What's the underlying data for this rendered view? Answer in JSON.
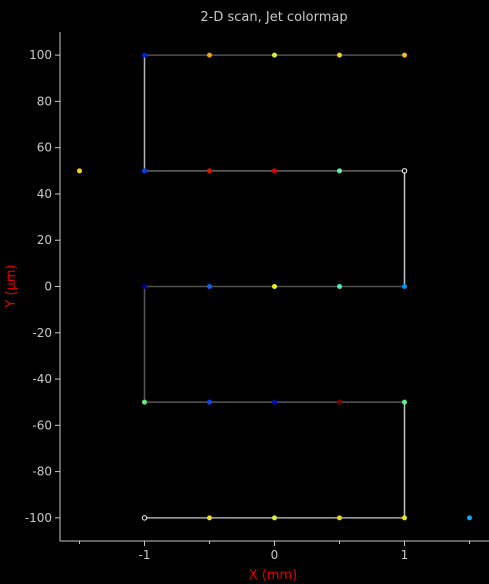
{
  "chart_data": {
    "type": "scatter",
    "title": "2-D scan, Jet colormap",
    "xlabel": "X (mm)",
    "ylabel": "Y (µm)",
    "xlim": [
      -1.65,
      1.65
    ],
    "ylim": [
      -110,
      110
    ],
    "x_ticks": [
      -1,
      0,
      1
    ],
    "x_tick_labels": [
      "-1",
      "0",
      "1"
    ],
    "y_ticks": [
      -100,
      -80,
      -60,
      -40,
      -20,
      0,
      20,
      40,
      60,
      80,
      100
    ],
    "y_tick_labels": [
      "-100",
      "-80",
      "-60",
      "-40",
      "-20",
      "0",
      "20",
      "40",
      "60",
      "80",
      "100"
    ],
    "grid": false,
    "background": "#000000",
    "path_colors": [
      "#3a3a3a",
      "#cccccc"
    ],
    "path_segments": [
      {
        "from": [
          -1,
          -100
        ],
        "to": [
          1,
          -100
        ],
        "shade": 0.75
      },
      {
        "from": [
          1,
          -100
        ],
        "to": [
          1,
          -50
        ],
        "shade": 0.95
      },
      {
        "from": [
          1,
          -50
        ],
        "to": [
          -1,
          -50
        ],
        "shade": 0.2
      },
      {
        "from": [
          -1,
          -50
        ],
        "to": [
          -1,
          0
        ],
        "shade": 0.2
      },
      {
        "from": [
          -1,
          0
        ],
        "to": [
          1,
          0
        ],
        "shade": 0.15
      },
      {
        "from": [
          1,
          0
        ],
        "to": [
          1,
          50
        ],
        "shade": 0.95
      },
      {
        "from": [
          1,
          50
        ],
        "to": [
          -1,
          50
        ],
        "shade": 0.3
      },
      {
        "from": [
          -1,
          50
        ],
        "to": [
          -1,
          100
        ],
        "shade": 0.85
      },
      {
        "from": [
          -1,
          100
        ],
        "to": [
          1,
          100
        ],
        "shade": 0.15
      }
    ],
    "points": [
      {
        "x": -1,
        "y": -100,
        "color": "#ffffff",
        "hollow": true
      },
      {
        "x": -0.5,
        "y": -100,
        "color": "#e8e030"
      },
      {
        "x": 0,
        "y": -100,
        "color": "#d8f040"
      },
      {
        "x": 0.5,
        "y": -100,
        "color": "#f0d020"
      },
      {
        "x": 1,
        "y": -100,
        "color": "#f0e020"
      },
      {
        "x": 1.5,
        "y": -100,
        "color": "#10a8f0"
      },
      {
        "x": -1,
        "y": -50,
        "color": "#60f080"
      },
      {
        "x": -0.5,
        "y": -50,
        "color": "#1040f0"
      },
      {
        "x": 0,
        "y": -50,
        "color": "#0010c0"
      },
      {
        "x": 0.5,
        "y": -50,
        "color": "#800000"
      },
      {
        "x": 1,
        "y": -50,
        "color": "#60f080"
      },
      {
        "x": -1,
        "y": 0,
        "color": "#000090"
      },
      {
        "x": -0.5,
        "y": 0,
        "color": "#1060f0"
      },
      {
        "x": 0,
        "y": 0,
        "color": "#f0f020"
      },
      {
        "x": 0.5,
        "y": 0,
        "color": "#40f0c0"
      },
      {
        "x": 1,
        "y": 0,
        "color": "#0090f0"
      },
      {
        "x": -1.5,
        "y": 50,
        "color": "#f0d020"
      },
      {
        "x": -1,
        "y": 50,
        "color": "#0040f0"
      },
      {
        "x": -0.5,
        "y": 50,
        "color": "#e01000"
      },
      {
        "x": 0,
        "y": 50,
        "color": "#e00000"
      },
      {
        "x": 0.5,
        "y": 50,
        "color": "#60f0a0"
      },
      {
        "x": 1,
        "y": 50,
        "color": "#ffffff",
        "hollow": true
      },
      {
        "x": -1,
        "y": 100,
        "color": "#0020e0"
      },
      {
        "x": -0.5,
        "y": 100,
        "color": "#f0a010"
      },
      {
        "x": 0,
        "y": 100,
        "color": "#d8f040"
      },
      {
        "x": 0.5,
        "y": 100,
        "color": "#f0d020"
      },
      {
        "x": 1,
        "y": 100,
        "color": "#f0c010"
      }
    ]
  }
}
